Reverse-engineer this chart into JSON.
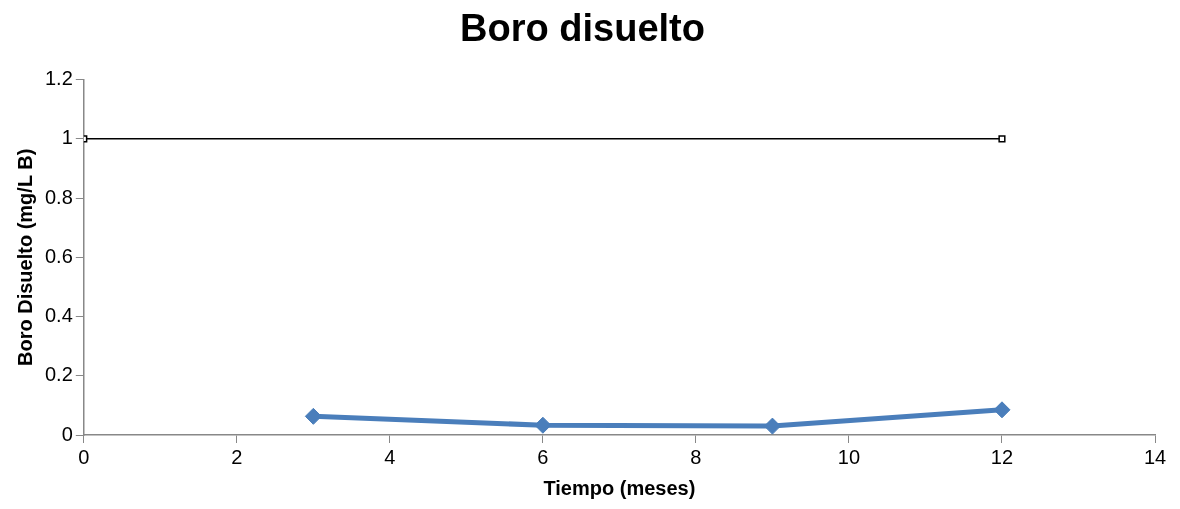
{
  "chart_data": {
    "type": "line",
    "title": "Boro disuelto",
    "xlabel": "Tiempo (meses)",
    "ylabel": "Boro Disuelto (mg/L B)",
    "xlim": [
      0,
      14
    ],
    "xticks": [
      0,
      2,
      4,
      6,
      8,
      10,
      12,
      14
    ],
    "ylim": [
      0,
      1.2
    ],
    "yticks": [
      0,
      {
        "value": 0.2,
        "label": "0.2"
      },
      {
        "value": 0.4,
        "label": "0.4"
      },
      {
        "value": 0.6,
        "label": "0.6"
      },
      {
        "value": 0.8,
        "label": "0.8"
      },
      1,
      {
        "value": 1.2,
        "label": "1.2"
      }
    ],
    "grid": false,
    "legend": false,
    "line_style": "solid",
    "series": [
      {
        "color": "#4a7ebb",
        "x": [
          3,
          6,
          9,
          12
        ],
        "values": [
          0.063,
          0.033,
          0.03,
          0.085
        ],
        "marker": "diamond"
      },
      {
        "color": "#000000",
        "x": [
          0,
          12
        ],
        "values": [
          1,
          1
        ],
        "marker": "square"
      }
    ]
  }
}
